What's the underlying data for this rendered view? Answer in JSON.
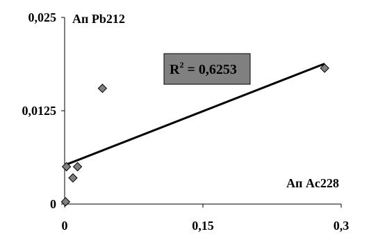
{
  "chart_data": {
    "type": "scatter",
    "title": "",
    "xlabel": "Ап Ac228",
    "ylabel": "Ап Pb212",
    "xlim": [
      0,
      0.3
    ],
    "ylim": [
      0,
      0.025
    ],
    "x_ticks": [
      "0",
      "0,15",
      "0,3"
    ],
    "y_ticks": [
      "0",
      "0,0125",
      "0,025"
    ],
    "grid": false,
    "legend": "none",
    "series": [
      {
        "marker": "diamond",
        "color": "#808080",
        "points": [
          {
            "x": 0.001,
            "y": 0.0003
          },
          {
            "x": 0.002,
            "y": 0.005
          },
          {
            "x": 0.009,
            "y": 0.0035
          },
          {
            "x": 0.014,
            "y": 0.005
          },
          {
            "x": 0.041,
            "y": 0.0155
          },
          {
            "x": 0.282,
            "y": 0.0182
          }
        ]
      }
    ],
    "trendline": {
      "type": "linear",
      "x_start": 0.002,
      "y_start": 0.0053,
      "x_end": 0.282,
      "y_end": 0.0188,
      "label": "R",
      "label_sup": "2",
      "label_value": " = 0,6253",
      "label_box_color": "#808080"
    }
  }
}
